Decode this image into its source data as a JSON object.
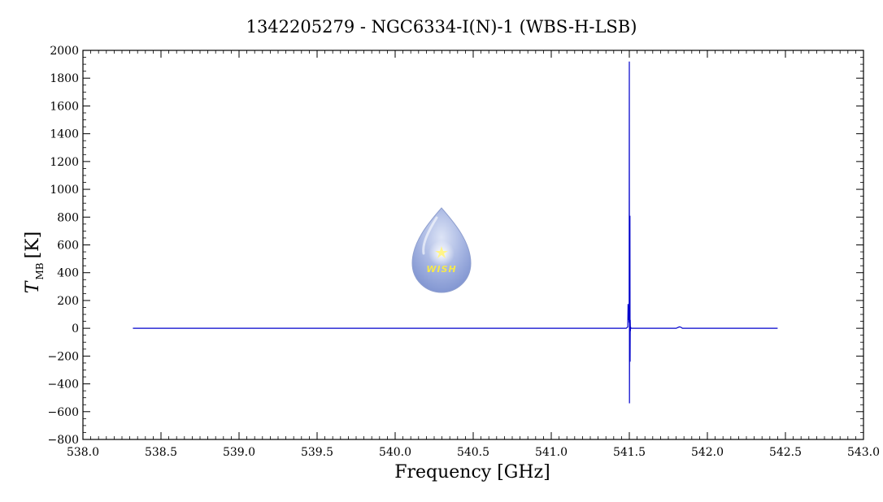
{
  "chart_data": {
    "type": "line",
    "title": "1342205279 - NGC6334-I(N)-1 (WBS-H-LSB)",
    "xlabel": "Frequency [GHz]",
    "ylabel_symbol": "T",
    "ylabel_subscript": "MB",
    "ylabel_unit": "[K]",
    "xlim": [
      538.0,
      543.0
    ],
    "ylim": [
      -800,
      2000
    ],
    "x_ticks": [
      "538.0",
      "538.5",
      "539.0",
      "539.5",
      "540.0",
      "540.5",
      "541.0",
      "541.5",
      "542.0",
      "542.5",
      "543.0"
    ],
    "y_ticks": [
      "−800",
      "−600",
      "−400",
      "−200",
      "0",
      "200",
      "400",
      "600",
      "800",
      "1000",
      "1200",
      "1400",
      "1600",
      "1800",
      "2000"
    ],
    "grid": false,
    "legend": "none",
    "series": [
      {
        "color": "#0000cc",
        "x": [
          538.32,
          541.48,
          541.49,
          541.492,
          541.495,
          541.497,
          541.499,
          541.5,
          541.501,
          541.502,
          541.503,
          541.504,
          541.505,
          541.506,
          541.507,
          541.508,
          541.51,
          541.52,
          541.8,
          541.82,
          541.83,
          541.84,
          541.86,
          542.45
        ],
        "y": [
          0,
          0,
          10,
          175,
          60,
          90,
          40,
          1920,
          -540,
          30,
          -10,
          810,
          -240,
          60,
          -20,
          10,
          0,
          0,
          0,
          10,
          8,
          0,
          0,
          0
        ]
      }
    ]
  },
  "watermark": {
    "text": "WISH",
    "colors": {
      "drop_top": "#c9d3ee",
      "drop_bottom": "#8fa3d8",
      "star": "#fff48a",
      "text": "#f5e84a"
    }
  }
}
